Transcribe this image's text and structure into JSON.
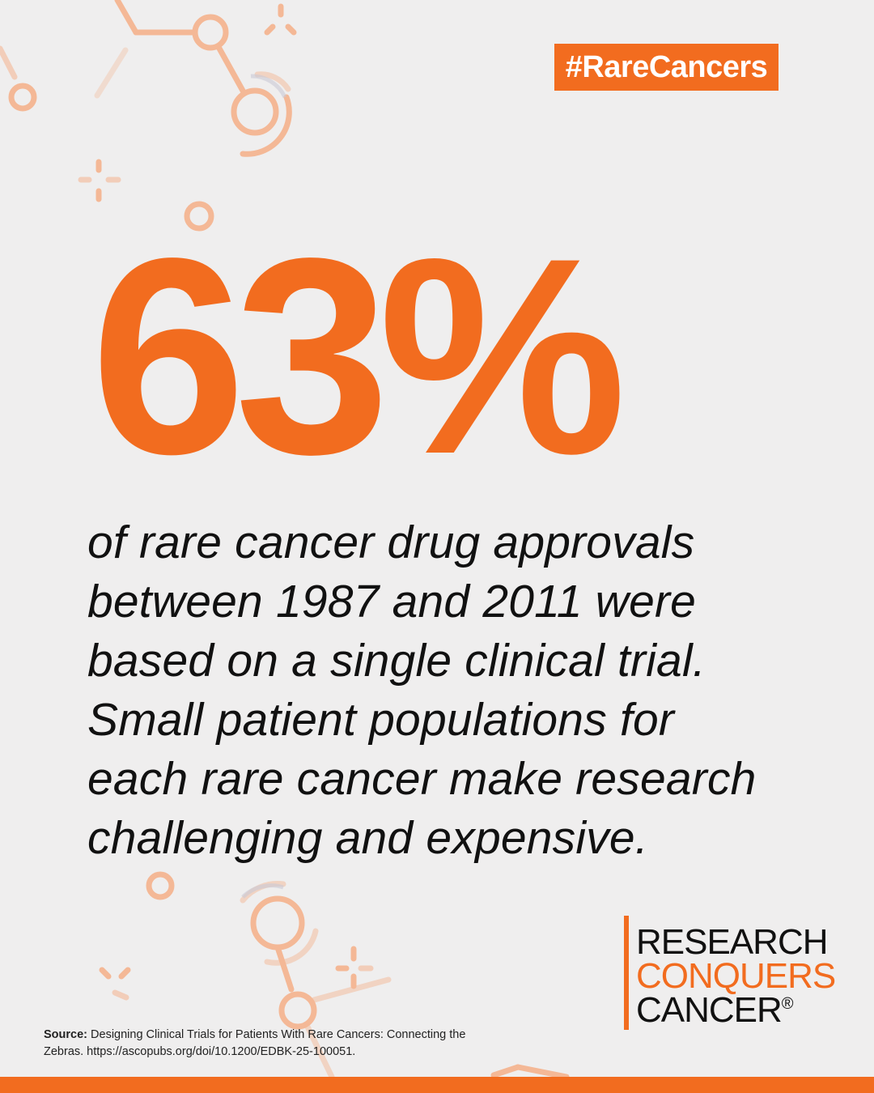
{
  "hashtag": "#RareCancers",
  "stat": "63%",
  "body_lines": [
    "of rare cancer drug approvals",
    "between 1987 and 2011 were",
    "based on a single clinical trial.",
    "Small patient populations for",
    "each rare cancer make research",
    "challenging and expensive."
  ],
  "logo": {
    "line1": "RESEARCH",
    "line2": "CONQUERS",
    "line3": "CANCER",
    "mark": "®"
  },
  "source": {
    "label": "Source:",
    "text": "Designing Clinical Trials for Patients With Rare Cancers: Connecting the Zebras. https://ascopubs.org/doi/10.1200/EDBK-25-100051."
  },
  "colors": {
    "accent": "#f26c1f",
    "background": "#efeeee",
    "text": "#111111"
  },
  "icons": [
    "molecule-decoration-icon"
  ]
}
